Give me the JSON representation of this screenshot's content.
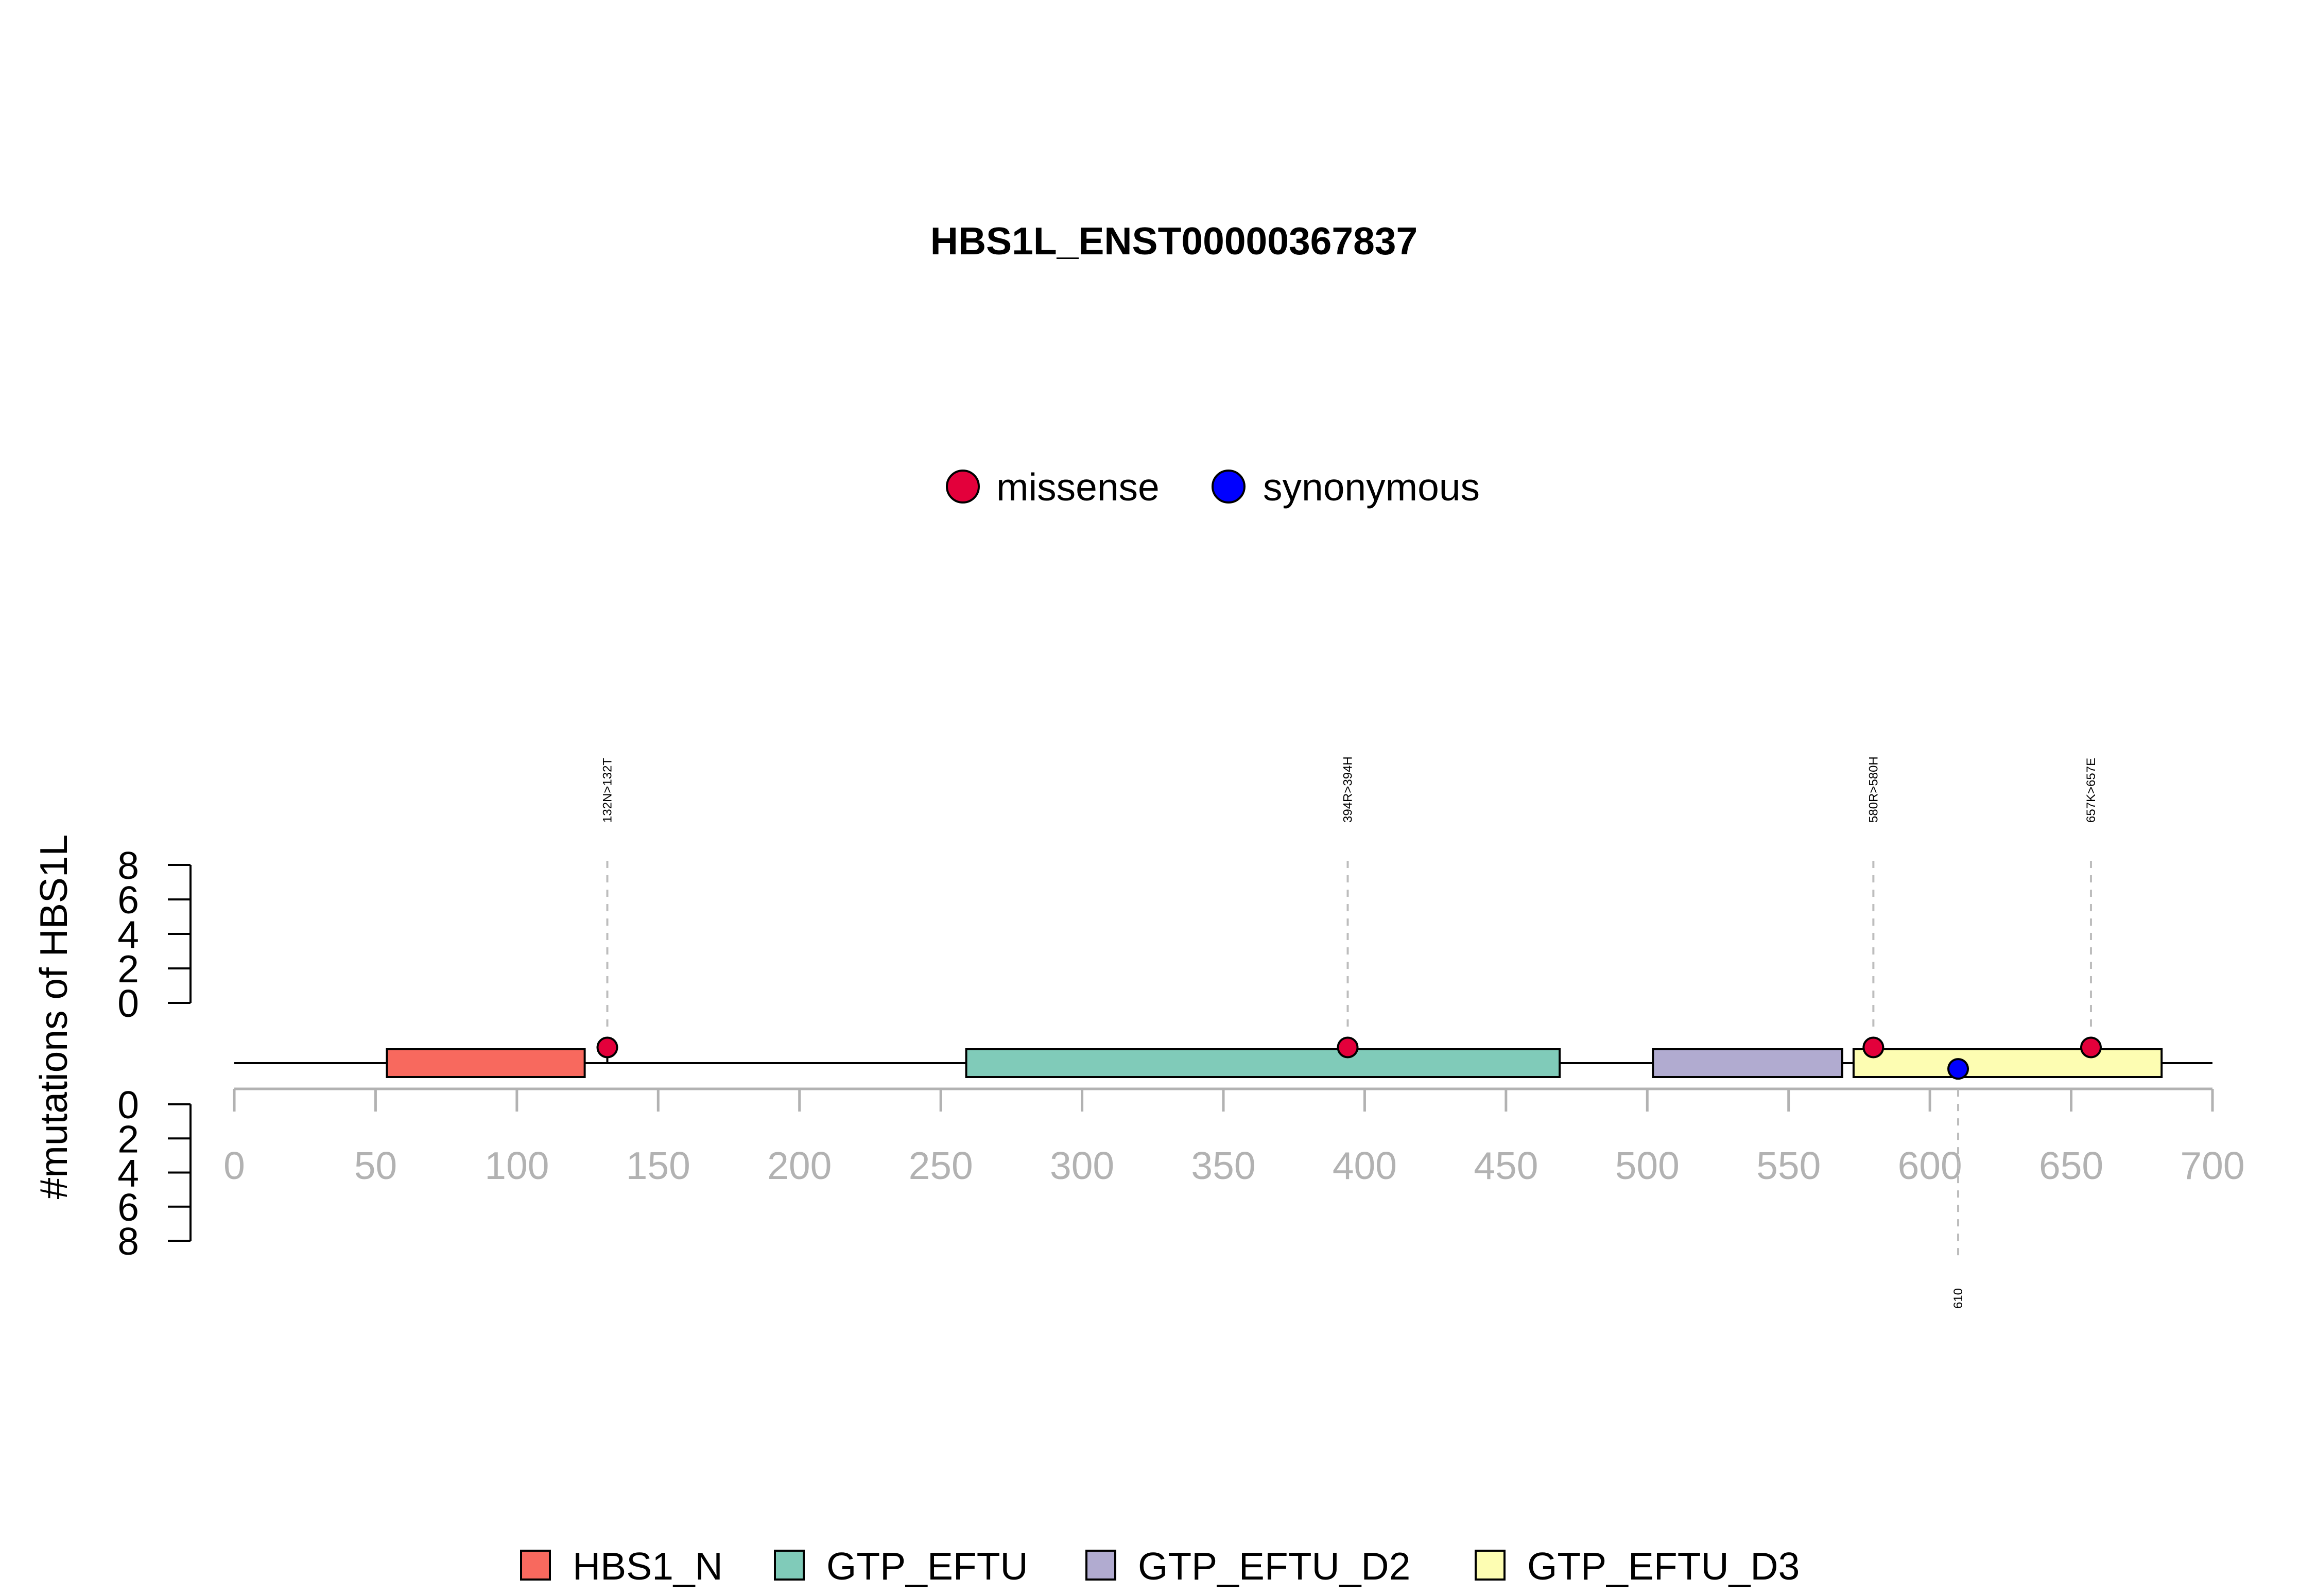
{
  "chart_data": {
    "type": "lollipop",
    "title": "HBS1L_ENST00000367837",
    "ylabel": "#mutations of HBS1L",
    "xlim": [
      0,
      700
    ],
    "x_ticks": [
      0,
      50,
      100,
      150,
      200,
      250,
      300,
      350,
      400,
      450,
      500,
      550,
      600,
      650,
      700
    ],
    "ylim": [
      0,
      8
    ],
    "y_ticks": [
      0,
      2,
      4,
      6,
      8
    ],
    "mutation_types": [
      {
        "name": "missense",
        "color": "#E3003B"
      },
      {
        "name": "synonymous",
        "color": "#0000FF"
      }
    ],
    "domains": [
      {
        "name": "HBS1_N",
        "start": 54,
        "end": 124,
        "color": "#F8695E"
      },
      {
        "name": "GTP_EFTU",
        "start": 259,
        "end": 469,
        "color": "#80CBB9"
      },
      {
        "name": "GTP_EFTU_D2",
        "start": 502,
        "end": 569,
        "color": "#B1ABD0"
      },
      {
        "name": "GTP_EFTU_D3",
        "start": 573,
        "end": 682,
        "color": "#FDFDB2"
      }
    ],
    "mutations": [
      {
        "position": 132,
        "label": "132N>132T",
        "type": "missense",
        "count": 1,
        "side": "top"
      },
      {
        "position": 394,
        "label": "394R>394H",
        "type": "missense",
        "count": 1,
        "side": "top"
      },
      {
        "position": 580,
        "label": "580R>580H",
        "type": "missense",
        "count": 1,
        "side": "top"
      },
      {
        "position": 657,
        "label": "657K>657E",
        "type": "missense",
        "count": 1,
        "side": "top"
      },
      {
        "position": 610,
        "label": "610",
        "type": "synonymous",
        "count": 1,
        "side": "bottom"
      }
    ]
  }
}
